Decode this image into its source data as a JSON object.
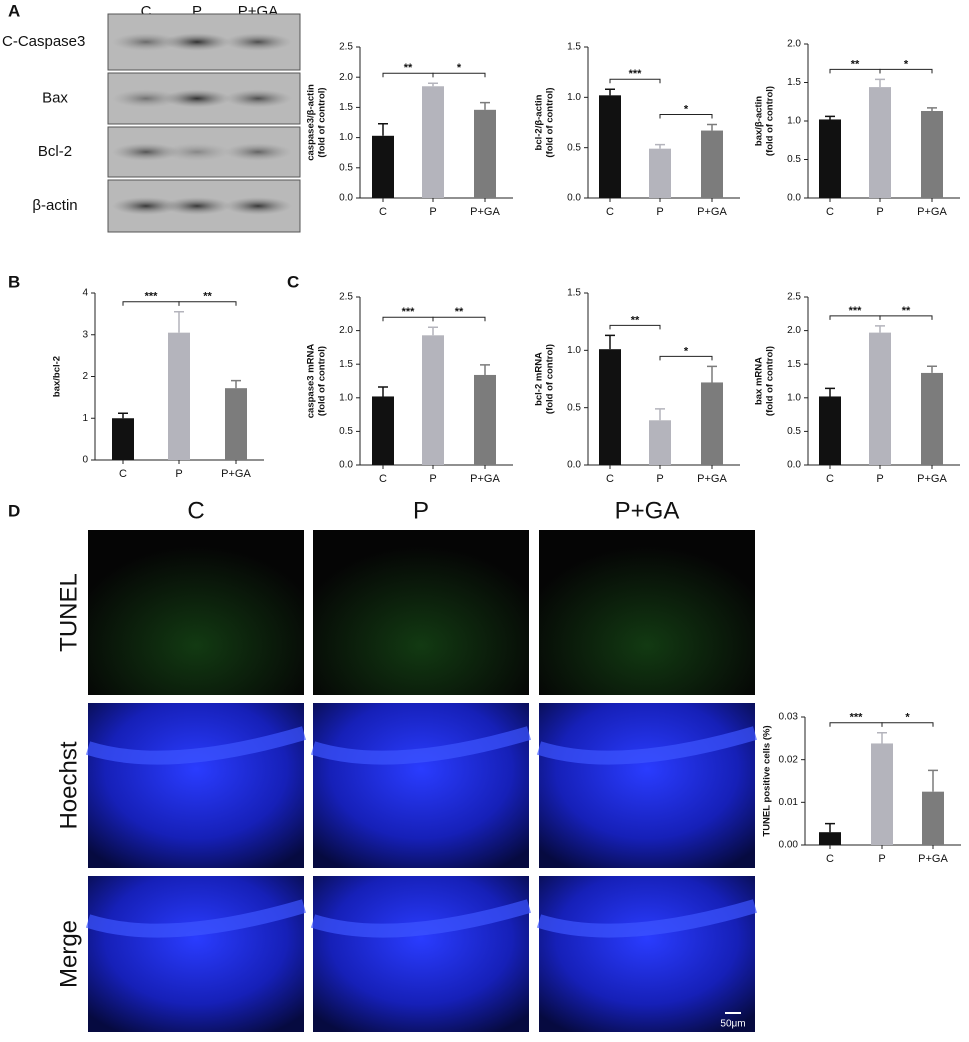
{
  "chart_data": [
    {
      "type": "bar",
      "ylabel": [
        "caspase3/β-actin",
        "(fold of control)"
      ],
      "categories": [
        "C",
        "P",
        "P+GA"
      ],
      "values": [
        1.03,
        1.85,
        1.46
      ],
      "errors": [
        0.2,
        0.05,
        0.12
      ],
      "colors": [
        "#111111",
        "#b4b4bc",
        "#7c7c7c"
      ],
      "ylim": [
        0,
        2.5
      ],
      "yticks": [
        {
          "value": 0,
          "label": "0.0"
        },
        0.5,
        {
          "value": 1,
          "label": "1.0"
        },
        1.5,
        {
          "value": 2,
          "label": "2.0"
        },
        2.5
      ],
      "brackets": [
        {
          "label": "**",
          "between": [
            "C",
            "P"
          ]
        },
        {
          "label": "*",
          "between": [
            "P",
            "P+GA"
          ]
        }
      ]
    },
    {
      "type": "bar",
      "ylabel": [
        "bcl-2/β-actin",
        "(fold of control)"
      ],
      "categories": [
        "C",
        "P",
        "P+GA"
      ],
      "values": [
        1.02,
        0.49,
        0.67
      ],
      "errors": [
        0.06,
        0.04,
        0.06
      ],
      "colors": [
        "#111111",
        "#b4b4bc",
        "#7c7c7c"
      ],
      "ylim": [
        0,
        1.5
      ],
      "yticks": [
        {
          "value": 0,
          "label": "0.0"
        },
        0.5,
        {
          "value": 1,
          "label": "1.0"
        },
        1.5
      ],
      "brackets": [
        {
          "label": "***",
          "between": [
            "C",
            "P"
          ]
        },
        {
          "label": "*",
          "between": [
            "P",
            "P+GA"
          ]
        }
      ]
    },
    {
      "type": "bar",
      "ylabel": [
        "bax/β-actin",
        "(fold of control)"
      ],
      "categories": [
        "C",
        "P",
        "P+GA"
      ],
      "values": [
        1.02,
        1.44,
        1.13
      ],
      "errors": [
        0.04,
        0.1,
        0.04
      ],
      "colors": [
        "#111111",
        "#b4b4bc",
        "#7c7c7c"
      ],
      "ylim": [
        0,
        2
      ],
      "yticks": [
        {
          "value": 0,
          "label": "0.0"
        },
        0.5,
        {
          "value": 1,
          "label": "1.0"
        },
        1.5,
        {
          "value": 2,
          "label": "2.0"
        }
      ],
      "brackets": [
        {
          "label": "**",
          "between": [
            "C",
            "P"
          ]
        },
        {
          "label": "*",
          "between": [
            "P",
            "P+GA"
          ]
        }
      ]
    },
    {
      "type": "bar",
      "ylabel": [
        "bax/bcl-2"
      ],
      "categories": [
        "C",
        "P",
        "P+GA"
      ],
      "values": [
        1.0,
        3.05,
        1.72
      ],
      "errors": [
        0.12,
        0.5,
        0.18
      ],
      "colors": [
        "#111111",
        "#b4b4bc",
        "#7c7c7c"
      ],
      "ylim": [
        0,
        4
      ],
      "yticks": [
        0,
        1,
        2,
        3,
        4
      ],
      "brackets": [
        {
          "label": "***",
          "between": [
            "C",
            "P"
          ]
        },
        {
          "label": "**",
          "between": [
            "P",
            "P+GA"
          ]
        }
      ]
    },
    {
      "type": "bar",
      "ylabel": [
        "caspase3 mRNA",
        "(fold of control)"
      ],
      "categories": [
        "C",
        "P",
        "P+GA"
      ],
      "values": [
        1.02,
        1.93,
        1.34
      ],
      "errors": [
        0.14,
        0.12,
        0.15
      ],
      "colors": [
        "#111111",
        "#b4b4bc",
        "#7c7c7c"
      ],
      "ylim": [
        0,
        2.5
      ],
      "yticks": [
        {
          "value": 0,
          "label": "0.0"
        },
        0.5,
        {
          "value": 1,
          "label": "1.0"
        },
        1.5,
        {
          "value": 2,
          "label": "2.0"
        },
        2.5
      ],
      "brackets": [
        {
          "label": "***",
          "between": [
            "C",
            "P"
          ]
        },
        {
          "label": "**",
          "between": [
            "P",
            "P+GA"
          ]
        }
      ]
    },
    {
      "type": "bar",
      "ylabel": [
        "bcl-2 mRNA",
        "(fold of control)"
      ],
      "categories": [
        "C",
        "P",
        "P+GA"
      ],
      "values": [
        1.01,
        0.39,
        0.72
      ],
      "errors": [
        0.12,
        0.1,
        0.14
      ],
      "colors": [
        "#111111",
        "#b4b4bc",
        "#7c7c7c"
      ],
      "ylim": [
        0,
        1.5
      ],
      "yticks": [
        {
          "value": 0,
          "label": "0.0"
        },
        0.5,
        {
          "value": 1,
          "label": "1.0"
        },
        1.5
      ],
      "brackets": [
        {
          "label": "**",
          "between": [
            "C",
            "P"
          ]
        },
        {
          "label": "*",
          "between": [
            "P",
            "P+GA"
          ]
        }
      ]
    },
    {
      "type": "bar",
      "ylabel": [
        "bax mRNA",
        "(fold of control)"
      ],
      "categories": [
        "C",
        "P",
        "P+GA"
      ],
      "values": [
        1.02,
        1.97,
        1.37
      ],
      "errors": [
        0.12,
        0.1,
        0.1
      ],
      "colors": [
        "#111111",
        "#b4b4bc",
        "#7c7c7c"
      ],
      "ylim": [
        0,
        2.5
      ],
      "yticks": [
        {
          "value": 0,
          "label": "0.0"
        },
        0.5,
        {
          "value": 1,
          "label": "1.0"
        },
        1.5,
        {
          "value": 2,
          "label": "2.0"
        },
        2.5
      ],
      "brackets": [
        {
          "label": "***",
          "between": [
            "C",
            "P"
          ]
        },
        {
          "label": "**",
          "between": [
            "P",
            "P+GA"
          ]
        }
      ]
    },
    {
      "type": "bar",
      "ylabel": [
        "TUNEL positive cells (%)"
      ],
      "categories": [
        "C",
        "P",
        "P+GA"
      ],
      "values": [
        0.003,
        0.0238,
        0.0125
      ],
      "errors": [
        0.002,
        0.0025,
        0.005
      ],
      "colors": [
        "#111111",
        "#b4b4bc",
        "#7c7c7c"
      ],
      "ylim": [
        0,
        0.03
      ],
      "yticks": [
        {
          "value": 0,
          "label": "0.00"
        },
        0.01,
        0.02,
        0.03
      ],
      "brackets": [
        {
          "label": "***",
          "between": [
            "C",
            "P"
          ]
        },
        {
          "label": "*",
          "between": [
            "P",
            "P+GA"
          ]
        }
      ]
    }
  ],
  "figure": {
    "panel_labels": [
      "A",
      "B",
      "C",
      "D"
    ],
    "blot": {
      "columns": [
        "C",
        "P",
        "P+GA"
      ],
      "rows": [
        "C-Caspase3",
        "Bax",
        "Bcl-2",
        "β-actin"
      ]
    },
    "microscopy": {
      "columns": [
        "C",
        "P",
        "P+GA"
      ],
      "rows": [
        "TUNEL",
        "Hoechst",
        "Merge"
      ],
      "scale_bar": "50μm"
    }
  }
}
